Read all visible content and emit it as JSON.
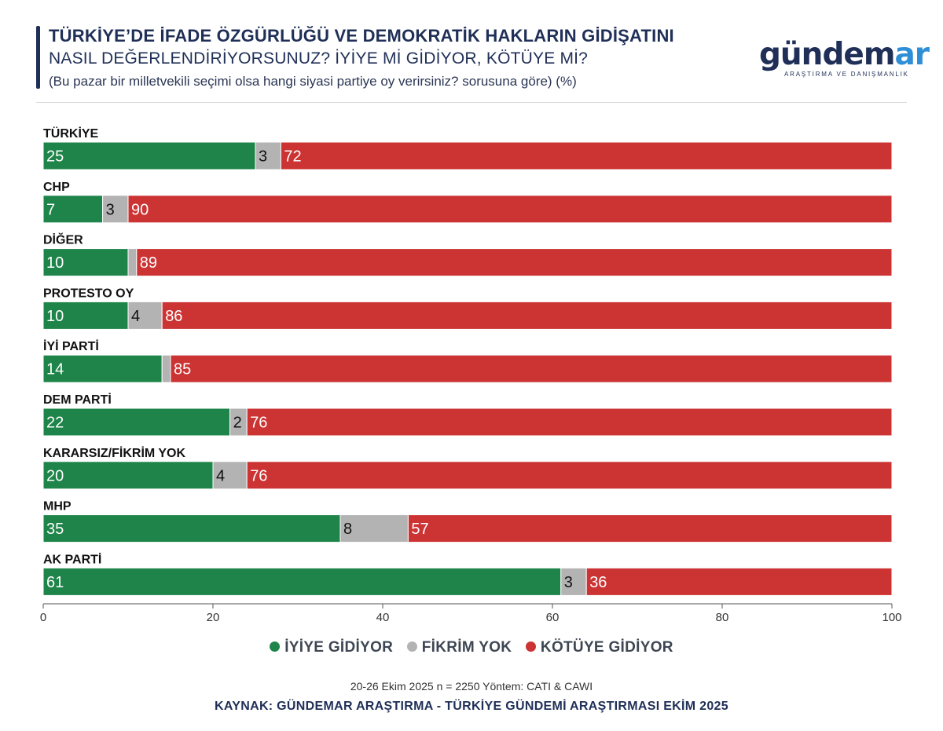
{
  "header": {
    "title_line1": "TÜRKİYE’DE İFADE ÖZGÜRLÜĞÜ VE DEMOKRATİK HAKLARIN GİDİŞATINI",
    "title_line2": "NASIL DEĞERLENDİRİYORSUNUZ? İYİYE Mİ GİDİYOR, KÖTÜYE Mİ?",
    "subtitle": "(Bu pazar bir milletvekili seçimi olsa hangi siyasi partiye oy verirsiniz? sorusuna göre) (%)"
  },
  "logo": {
    "word_main": "gündem",
    "word_accent": "ar",
    "tagline": "ARAŞTIRMA VE DANIŞMANLIK"
  },
  "chart_data": {
    "type": "bar",
    "orientation": "horizontal",
    "stacked": true,
    "categories": [
      "TÜRKİYE",
      "CHP",
      "DİĞER",
      "PROTESTO OY",
      "İYİ PARTİ",
      "DEM PARTİ",
      "KARARSIZ/FİKRİM YOK",
      "MHP",
      "AK PARTİ"
    ],
    "series": [
      {
        "name": "İYİYE GİDİYOR",
        "color": "#1e8449",
        "values": [
          25,
          7,
          10,
          10,
          14,
          22,
          20,
          35,
          61
        ],
        "labels": [
          "25",
          "7",
          "10",
          "10",
          "14",
          "22",
          "20",
          "35",
          "61"
        ]
      },
      {
        "name": "FİKRİM YOK",
        "color": "#b3b3b3",
        "values": [
          3,
          3,
          1,
          4,
          1,
          2,
          4,
          8,
          3
        ],
        "labels": [
          "3",
          "3",
          "",
          "4",
          "",
          "2",
          "4",
          "8",
          "3"
        ]
      },
      {
        "name": "KÖTÜYE GİDİYOR",
        "color": "#cc3333",
        "values": [
          72,
          90,
          89,
          86,
          85,
          76,
          76,
          57,
          36
        ],
        "labels": [
          "72",
          "90",
          "89",
          "86",
          "85",
          "76",
          "76",
          "57",
          "36"
        ]
      }
    ],
    "xlim": [
      0,
      100
    ],
    "xticks": [
      0,
      20,
      40,
      60,
      80,
      100
    ],
    "legend_position": "bottom",
    "grid": false
  },
  "footer": {
    "meta": "20-26 Ekim 2025 n = 2250 Yöntem: CATI & CAWI",
    "source": "KAYNAK: GÜNDEMAR ARAŞTIRMA - TÜRKİYE GÜNDEMİ ARAŞTIRMASI EKİM 2025"
  }
}
